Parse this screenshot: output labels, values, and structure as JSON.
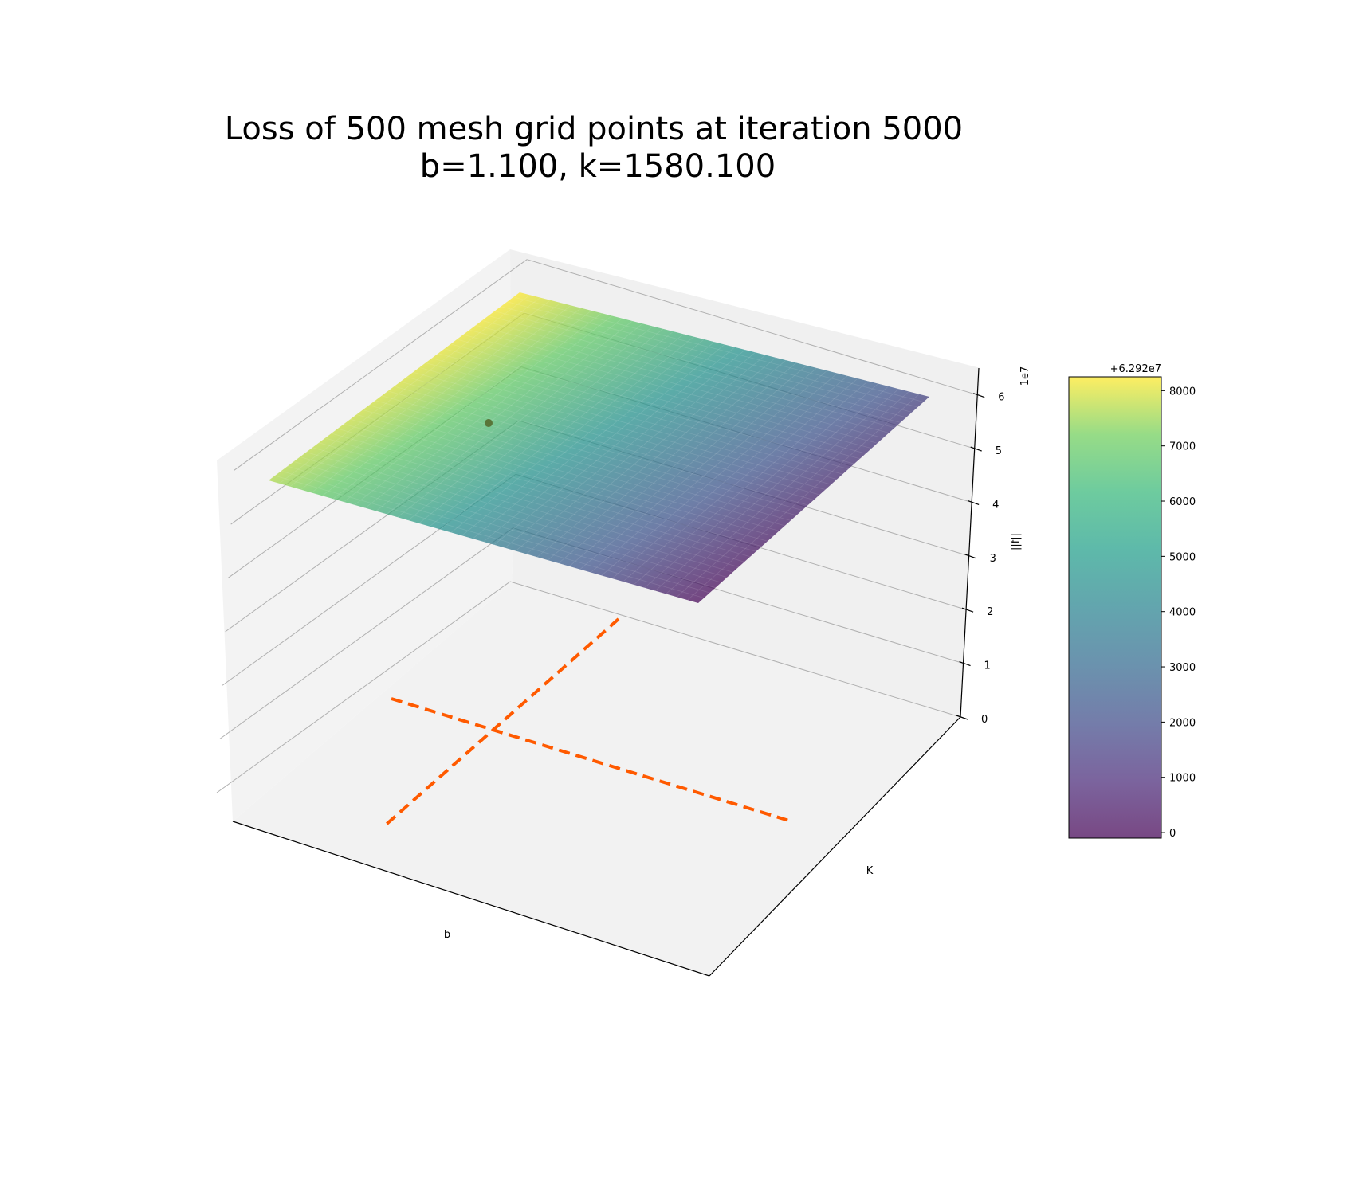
{
  "chart_data": {
    "type": "surface3d",
    "title": "Loss of 500 mesh grid points at iteration 5000",
    "subtitle": "b=1.100, k=1580.100",
    "xlabel": "b",
    "ylabel": "K",
    "zlabel": "||f||",
    "z_scale_label": "1e7",
    "zlim": [
      0,
      6.5
    ],
    "z_ticks": [
      0,
      1,
      2,
      3,
      4,
      5,
      6
    ],
    "z_tick_labels": [
      "0",
      "1",
      "2",
      "3",
      "4",
      "5",
      "6"
    ],
    "surface": {
      "colormap": "viridis",
      "alpha": 0.7,
      "z_approx": 6.292,
      "corner_values_offset": {
        "left": 5200,
        "back": 8200,
        "right": 2300,
        "front": 0
      }
    },
    "current_point": {
      "b": 1.1,
      "k": 1580.1,
      "color": "#556b2f"
    },
    "projection_lines": {
      "color": "#ff5a00",
      "style": "dashed"
    },
    "colorbar": {
      "offset_label": "+6.292e7",
      "min": -100,
      "max": 8250,
      "ticks": [
        0,
        1000,
        2000,
        3000,
        4000,
        5000,
        6000,
        7000,
        8000
      ],
      "tick_labels": [
        "0",
        "1000",
        "2000",
        "3000",
        "4000",
        "5000",
        "6000",
        "7000",
        "8000"
      ],
      "alpha": 0.7
    }
  }
}
